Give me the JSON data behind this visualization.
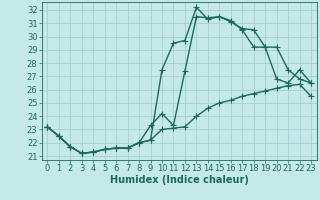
{
  "title": "",
  "xlabel": "Humidex (Indice chaleur)",
  "bg_color": "#c5e8e8",
  "grid_color": "#a8d0d0",
  "line_color": "#1a6b5a",
  "xlim": [
    -0.5,
    23.5
  ],
  "ylim": [
    20.7,
    32.6
  ],
  "yticks": [
    21,
    22,
    23,
    24,
    25,
    26,
    27,
    28,
    29,
    30,
    31,
    32
  ],
  "xticks": [
    0,
    1,
    2,
    3,
    4,
    5,
    6,
    7,
    8,
    9,
    10,
    11,
    12,
    13,
    14,
    15,
    16,
    17,
    18,
    19,
    20,
    21,
    22,
    23
  ],
  "line1_x": [
    0,
    1,
    2,
    3,
    4,
    5,
    6,
    7,
    8,
    9,
    10,
    11,
    12,
    13,
    14,
    15,
    16,
    17,
    18,
    19,
    20,
    21,
    22,
    23
  ],
  "line1_y": [
    23.2,
    22.5,
    21.7,
    21.2,
    21.3,
    21.5,
    21.6,
    21.6,
    22.0,
    22.2,
    23.0,
    23.1,
    23.2,
    24.0,
    24.6,
    25.0,
    25.2,
    25.5,
    25.7,
    25.9,
    26.1,
    26.3,
    26.4,
    25.5
  ],
  "line2_x": [
    0,
    1,
    2,
    3,
    4,
    5,
    6,
    7,
    8,
    9,
    10,
    11,
    12,
    13,
    14,
    15,
    16,
    17,
    18,
    19,
    20,
    21,
    22,
    23
  ],
  "line2_y": [
    23.2,
    22.5,
    21.7,
    21.2,
    21.3,
    21.5,
    21.6,
    21.6,
    22.0,
    22.2,
    27.5,
    29.5,
    29.7,
    32.2,
    31.3,
    31.5,
    31.2,
    30.5,
    29.2,
    29.2,
    29.2,
    27.5,
    26.8,
    26.5
  ],
  "line3_x": [
    0,
    1,
    2,
    3,
    4,
    5,
    6,
    7,
    8,
    9,
    10,
    11,
    12,
    13,
    14,
    15,
    16,
    17,
    18,
    19,
    20,
    21,
    22,
    23
  ],
  "line3_y": [
    23.2,
    22.5,
    21.7,
    21.2,
    21.3,
    21.5,
    21.6,
    21.6,
    22.0,
    23.3,
    24.2,
    23.3,
    27.4,
    31.5,
    31.4,
    31.5,
    31.1,
    30.6,
    30.5,
    29.2,
    26.8,
    26.5,
    27.5,
    26.5
  ],
  "marker": "+",
  "markersize": 4,
  "linewidth": 1.0,
  "fontsize_label": 7,
  "fontsize_tick": 6
}
